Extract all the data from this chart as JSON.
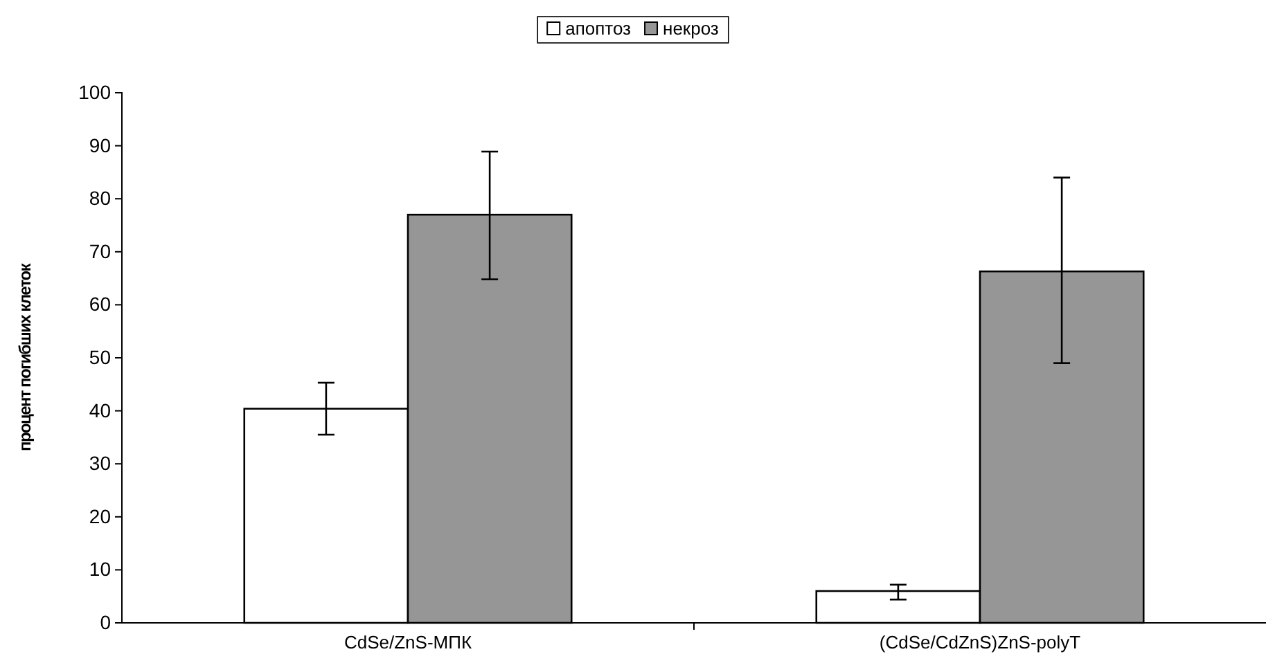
{
  "chart_data": {
    "type": "bar",
    "ylabel": "процент погибших клеток",
    "categories": [
      "CdSe/ZnS-МПК",
      "(CdSe/CdZnS)ZnS-polyT"
    ],
    "series": [
      {
        "name": "апоптоз",
        "color": "#ffffff",
        "values": [
          40.4,
          6
        ],
        "errors": [
          [
            35.5,
            45.3
          ],
          [
            4.4,
            7.2
          ]
        ]
      },
      {
        "name": "некроз",
        "color": "#969696",
        "values": [
          77,
          66.3
        ],
        "errors": [
          [
            64.8,
            88.9
          ],
          [
            49,
            84
          ]
        ]
      }
    ],
    "ylim": [
      0,
      100
    ],
    "yticks": [
      0,
      10,
      20,
      30,
      40,
      50,
      60,
      70,
      80,
      90,
      100
    ],
    "grid": false,
    "legend": "top"
  }
}
